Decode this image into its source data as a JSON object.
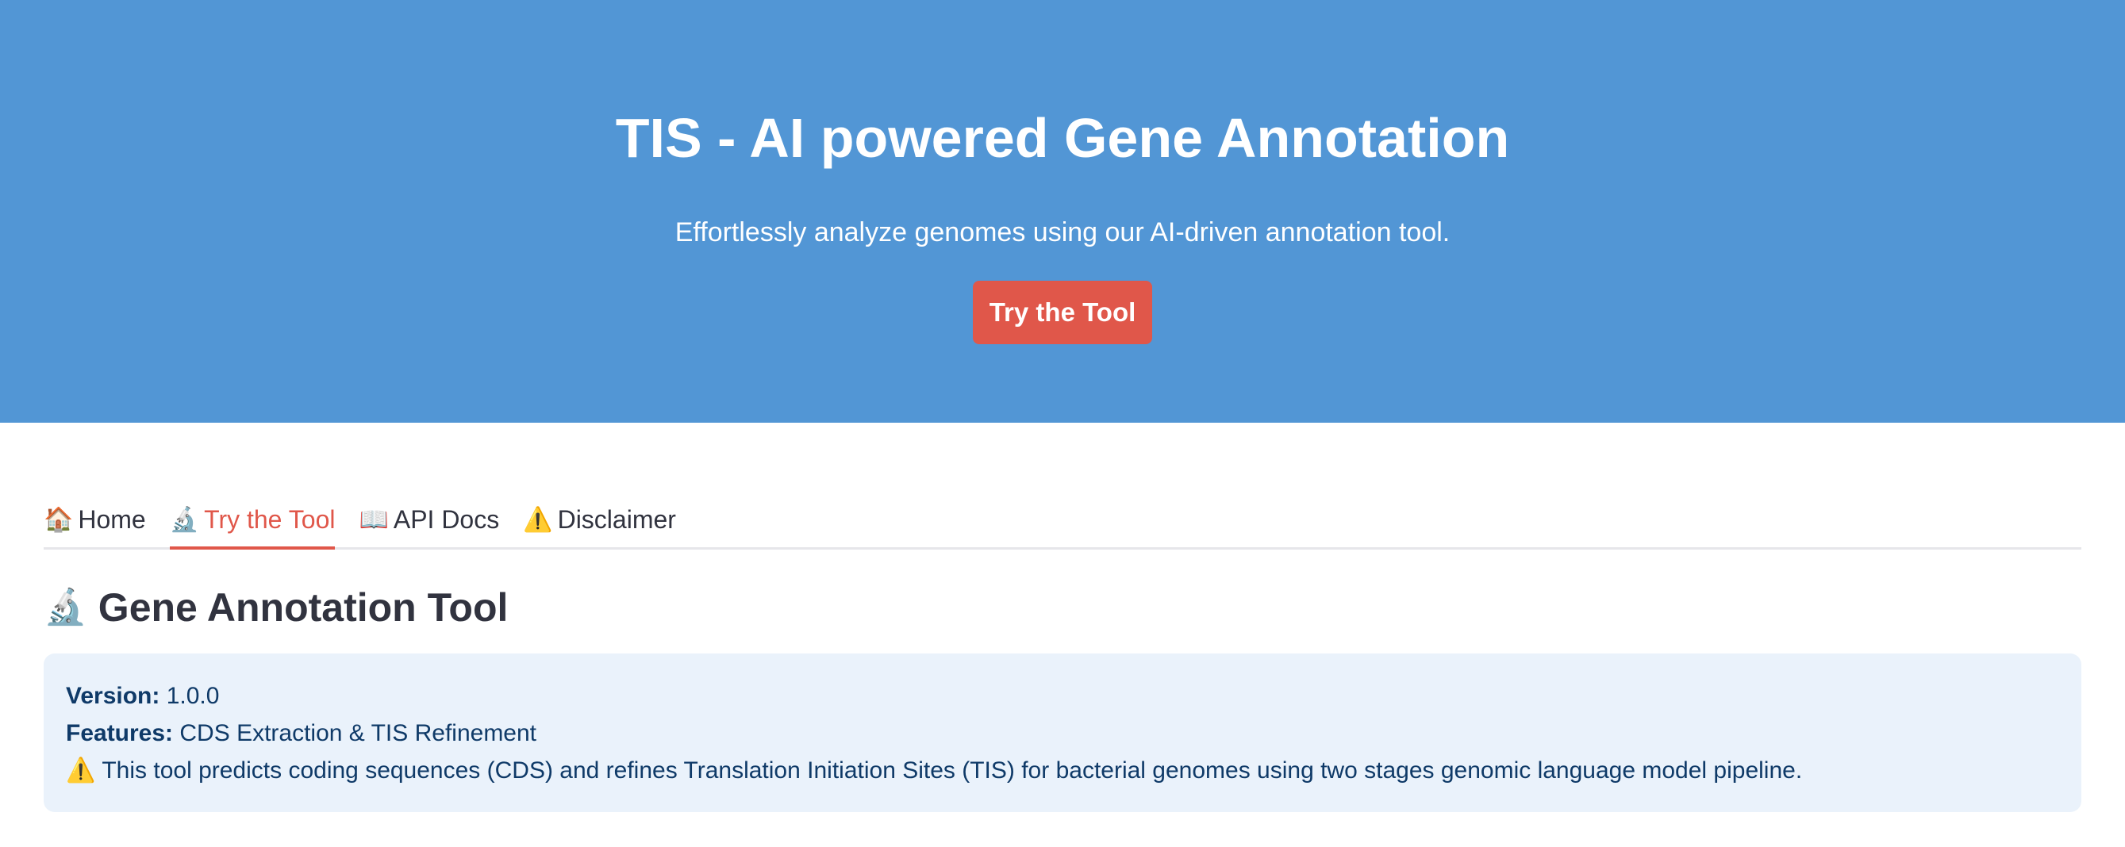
{
  "hero": {
    "title": "TIS - AI powered Gene Annotation",
    "subtitle": "Effortlessly analyze genomes using our AI-driven annotation tool.",
    "cta_label": "Try the Tool",
    "background_color": "#5296d5",
    "cta_color": "#e0574a"
  },
  "tabs": [
    {
      "icon": "🏠",
      "icon_name": "house-icon",
      "label": "Home",
      "active": false
    },
    {
      "icon": "🔬",
      "icon_name": "microscope-icon",
      "label": "Try the Tool",
      "active": true
    },
    {
      "icon": "📖",
      "icon_name": "book-icon",
      "label": "API Docs",
      "active": false
    },
    {
      "icon": "⚠️",
      "icon_name": "warning-icon",
      "label": "Disclaimer",
      "active": false
    }
  ],
  "section": {
    "icon": "🔬",
    "icon_name": "microscope-icon",
    "title": "Gene Annotation Tool"
  },
  "info": {
    "version_label": "Version:",
    "version_value": "1.0.0",
    "features_label": "Features:",
    "features_value": "CDS Extraction & TIS Refinement",
    "warning_icon": "⚠️",
    "warning_icon_name": "warning-icon",
    "note": "This tool predicts coding sequences (CDS) and refines Translation Initiation Sites (TIS) for bacterial genomes using two stages genomic language model pipeline."
  }
}
